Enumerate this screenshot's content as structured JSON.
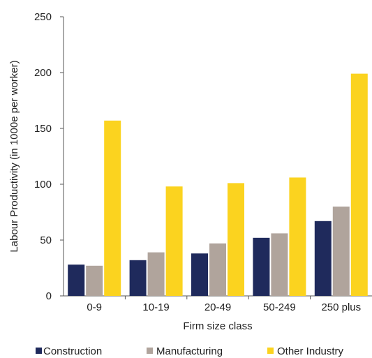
{
  "chart_data": {
    "type": "bar",
    "title": "",
    "xlabel": "Firm size class",
    "ylabel": "Labour Productivity (in 1000e per worker)",
    "ylim": [
      0,
      250
    ],
    "yticks": [
      "0",
      "50",
      "100",
      "150",
      "200",
      "250"
    ],
    "grid": false,
    "legend_position": "bottom",
    "categories": [
      "0-9",
      "10-19",
      "20-49",
      "50-249",
      "250 plus"
    ],
    "series": [
      {
        "name": "Construction",
        "color": "#1f2a5c",
        "values": [
          28,
          32,
          38,
          52,
          67
        ]
      },
      {
        "name": "Manufacturing",
        "color": "#b0a49c",
        "values": [
          27,
          39,
          47,
          56,
          80
        ]
      },
      {
        "name": "Other Industry",
        "color": "#fbd31f",
        "values": [
          157,
          98,
          101,
          106,
          199
        ]
      }
    ]
  }
}
